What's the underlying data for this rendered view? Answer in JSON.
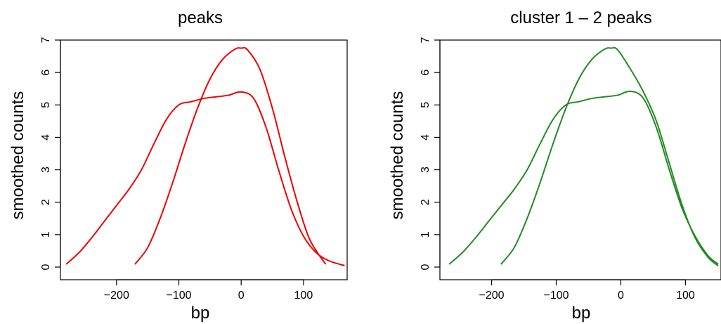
{
  "chart_data": [
    {
      "type": "line",
      "title": "peaks",
      "xlabel": "bp",
      "ylabel": "smoothed counts",
      "xlim": [
        -290,
        170
      ],
      "ylim": [
        0,
        7
      ],
      "xticks": [
        -200,
        -100,
        0,
        100
      ],
      "yticks": [
        0,
        1,
        2,
        3,
        4,
        5,
        6,
        7
      ],
      "color": "#ee0000",
      "series": [
        {
          "x": [
            -280,
            -260,
            -240,
            -220,
            -200,
            -180,
            -160,
            -140,
            -120,
            -100,
            -80,
            -60,
            -40,
            -20,
            0,
            20,
            40,
            60,
            80,
            100,
            120,
            140,
            165
          ],
          "values": [
            0.1,
            0.45,
            0.9,
            1.4,
            1.9,
            2.4,
            3.0,
            3.8,
            4.55,
            5.0,
            5.1,
            5.2,
            5.25,
            5.3,
            5.4,
            5.2,
            4.3,
            3.0,
            1.8,
            0.95,
            0.45,
            0.2,
            0.05
          ]
        },
        {
          "x": [
            -170,
            -150,
            -130,
            -110,
            -90,
            -70,
            -50,
            -30,
            -10,
            0,
            10,
            30,
            50,
            70,
            90,
            110,
            135
          ],
          "values": [
            0.1,
            0.6,
            1.5,
            2.6,
            3.8,
            4.9,
            5.8,
            6.4,
            6.72,
            6.75,
            6.7,
            6.1,
            4.9,
            3.4,
            2.0,
            0.85,
            0.1
          ]
        }
      ]
    },
    {
      "type": "line",
      "title": "cluster  1  –  2  peaks",
      "xlabel": "bp",
      "ylabel": "smoothed counts",
      "xlim": [
        -280,
        155
      ],
      "ylim": [
        0,
        7
      ],
      "xticks": [
        -200,
        -100,
        0,
        100
      ],
      "yticks": [
        0,
        1,
        2,
        3,
        4,
        5,
        6,
        7
      ],
      "color": "#228b22",
      "series": [
        {
          "x": [
            -265,
            -245,
            -225,
            -205,
            -185,
            -165,
            -145,
            -125,
            -105,
            -85,
            -65,
            -45,
            -25,
            -5,
            15,
            35,
            55,
            75,
            95,
            115,
            135,
            150
          ],
          "values": [
            0.1,
            0.45,
            0.9,
            1.4,
            1.9,
            2.4,
            3.0,
            3.8,
            4.55,
            5.0,
            5.1,
            5.2,
            5.25,
            5.3,
            5.42,
            5.2,
            4.3,
            3.0,
            1.8,
            0.95,
            0.35,
            0.1
          ]
        },
        {
          "x": [
            -185,
            -165,
            -145,
            -125,
            -105,
            -85,
            -65,
            -45,
            -25,
            -15,
            -5,
            15,
            35,
            55,
            75,
            95,
            115,
            135,
            150
          ],
          "values": [
            0.1,
            0.6,
            1.5,
            2.6,
            3.8,
            4.9,
            5.8,
            6.4,
            6.72,
            6.75,
            6.7,
            6.1,
            5.4,
            4.5,
            3.2,
            1.9,
            0.9,
            0.3,
            0.05
          ]
        }
      ]
    }
  ]
}
